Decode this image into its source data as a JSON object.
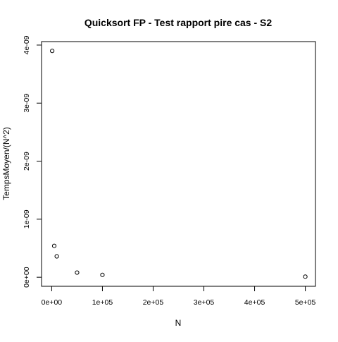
{
  "chart_data": {
    "type": "scatter",
    "title": "Quicksort FP - Test rapport pire cas - S2",
    "xlabel": "N",
    "ylabel": "TempsMoyen/(N^2)",
    "x_ticks": [
      {
        "value": 0,
        "label": "0e+00"
      },
      {
        "value": 100000,
        "label": "1e+05"
      },
      {
        "value": 200000,
        "label": "2e+05"
      },
      {
        "value": 300000,
        "label": "3e+05"
      },
      {
        "value": 400000,
        "label": "4e+05"
      },
      {
        "value": 500000,
        "label": "5e+05"
      }
    ],
    "y_ticks": [
      {
        "value": 0,
        "label": "0e+00"
      },
      {
        "value": 1e-09,
        "label": "1e-09"
      },
      {
        "value": 2e-09,
        "label": "2e-09"
      },
      {
        "value": 3e-09,
        "label": "3e-09"
      },
      {
        "value": 4e-09,
        "label": "4e-09"
      }
    ],
    "xlim": [
      -20000,
      520000
    ],
    "ylim": [
      -1.56e-10,
      4.06e-09
    ],
    "points": [
      {
        "x": 1000,
        "y": 3.9e-09
      },
      {
        "x": 5000,
        "y": 5.4e-10
      },
      {
        "x": 10000,
        "y": 3.6e-10
      },
      {
        "x": 50000,
        "y": 8e-11
      },
      {
        "x": 100000,
        "y": 4e-11
      },
      {
        "x": 500000,
        "y": 1e-11
      }
    ],
    "grid": false,
    "legend": "none"
  }
}
